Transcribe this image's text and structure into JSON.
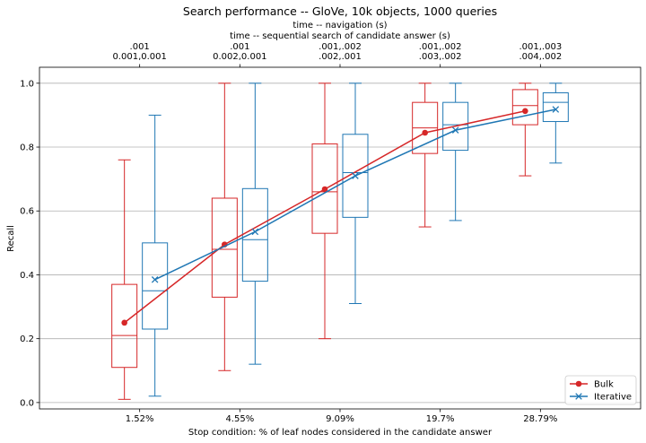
{
  "chart_data": {
    "type": "box",
    "title": "Search performance -- GloVe, 10k objects, 1000 queries",
    "top_axis_label_1": "time -- navigation (s)",
    "top_axis_label_2": "time -- sequential search of candidate answer (s)",
    "top_tick_labels": [
      [
        ".001",
        "0.001,0.001"
      ],
      [
        ".001",
        "0.002,0.001"
      ],
      [
        ".001,.002",
        ".002,.001"
      ],
      [
        ".001,.002",
        ".003,.002"
      ],
      [
        ".001,.003",
        ".004,.002"
      ]
    ],
    "xlabel": "Stop condition: % of leaf nodes considered in the candidate answer",
    "ylabel": "Recall",
    "categories": [
      "1.52%",
      "4.55%",
      "9.09%",
      "19.7%",
      "28.79%"
    ],
    "ylim": [
      -0.02,
      1.05
    ],
    "yticks": [
      0.0,
      0.2,
      0.4,
      0.6,
      0.8,
      1.0
    ],
    "grid": "horizontal",
    "legend_position": "bottom-right",
    "series": [
      {
        "name": "Bulk",
        "color": "#d62728",
        "marker": "circle",
        "mean": [
          0.25,
          0.495,
          0.668,
          0.845,
          0.913
        ],
        "boxes": [
          {
            "whislo": 0.01,
            "q1": 0.11,
            "med": 0.21,
            "q3": 0.37,
            "whishi": 0.76
          },
          {
            "whislo": 0.1,
            "q1": 0.33,
            "med": 0.48,
            "q3": 0.64,
            "whishi": 1.0
          },
          {
            "whislo": 0.2,
            "q1": 0.53,
            "med": 0.66,
            "q3": 0.81,
            "whishi": 1.0
          },
          {
            "whislo": 0.55,
            "q1": 0.78,
            "med": 0.86,
            "q3": 0.94,
            "whishi": 1.0
          },
          {
            "whislo": 0.71,
            "q1": 0.87,
            "med": 0.93,
            "q3": 0.98,
            "whishi": 1.0
          }
        ]
      },
      {
        "name": "Iterative",
        "color": "#1f77b4",
        "marker": "x",
        "mean": [
          0.385,
          0.535,
          0.71,
          0.853,
          0.918
        ],
        "boxes": [
          {
            "whislo": 0.02,
            "q1": 0.23,
            "med": 0.35,
            "q3": 0.5,
            "whishi": 0.9
          },
          {
            "whislo": 0.12,
            "q1": 0.38,
            "med": 0.51,
            "q3": 0.67,
            "whishi": 1.0
          },
          {
            "whislo": 0.31,
            "q1": 0.58,
            "med": 0.72,
            "q3": 0.84,
            "whishi": 1.0
          },
          {
            "whislo": 0.57,
            "q1": 0.79,
            "med": 0.87,
            "q3": 0.94,
            "whishi": 1.0
          },
          {
            "whislo": 0.75,
            "q1": 0.88,
            "med": 0.94,
            "q3": 0.97,
            "whishi": 1.0
          }
        ]
      }
    ]
  }
}
